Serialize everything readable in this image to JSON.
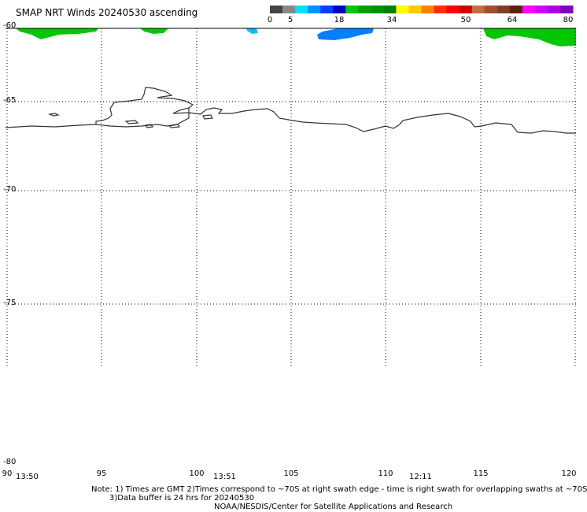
{
  "title": "SMAP NRT Winds 20240530 ascending",
  "colorbar": {
    "labels": [
      "0",
      "5",
      "18",
      "34",
      "50",
      "64",
      "80"
    ],
    "colors": [
      "#444444",
      "#888888",
      "#00e0ff",
      "#0090ff",
      "#0040ff",
      "#0000c8",
      "#00c800",
      "#00a000",
      "#009000",
      "#008000",
      "#ffff00",
      "#ffc800",
      "#ff8000",
      "#ff3000",
      "#ff0000",
      "#d00000",
      "#c07040",
      "#a05030",
      "#804020",
      "#602010",
      "#ff00ff",
      "#d000ff",
      "#b000e0",
      "#8000c0"
    ]
  },
  "axes": {
    "lat_labels": [
      "-60",
      "-65",
      "-70",
      "-75",
      "-80"
    ],
    "lon_labels": [
      "90",
      "95",
      "100",
      "105",
      "110",
      "115",
      "120"
    ]
  },
  "times": [
    "13:50",
    "13:51",
    "12:11"
  ],
  "notes": {
    "line1": "Note: 1) Times are GMT 2)Times correspond to ~70S at right swath edge - time is right swath for overlapping swaths at ~70S",
    "line2": "3)Data buffer is 24 hrs for 20240530",
    "line3": "NOAA/NESDIS/Center for Satellite Applications and Research"
  },
  "colors": {
    "wind_green": "#00c800",
    "wind_blue": "#0080ff",
    "wind_cyan": "#00c0ff",
    "coastline": "#333333",
    "grid": "#000000"
  }
}
